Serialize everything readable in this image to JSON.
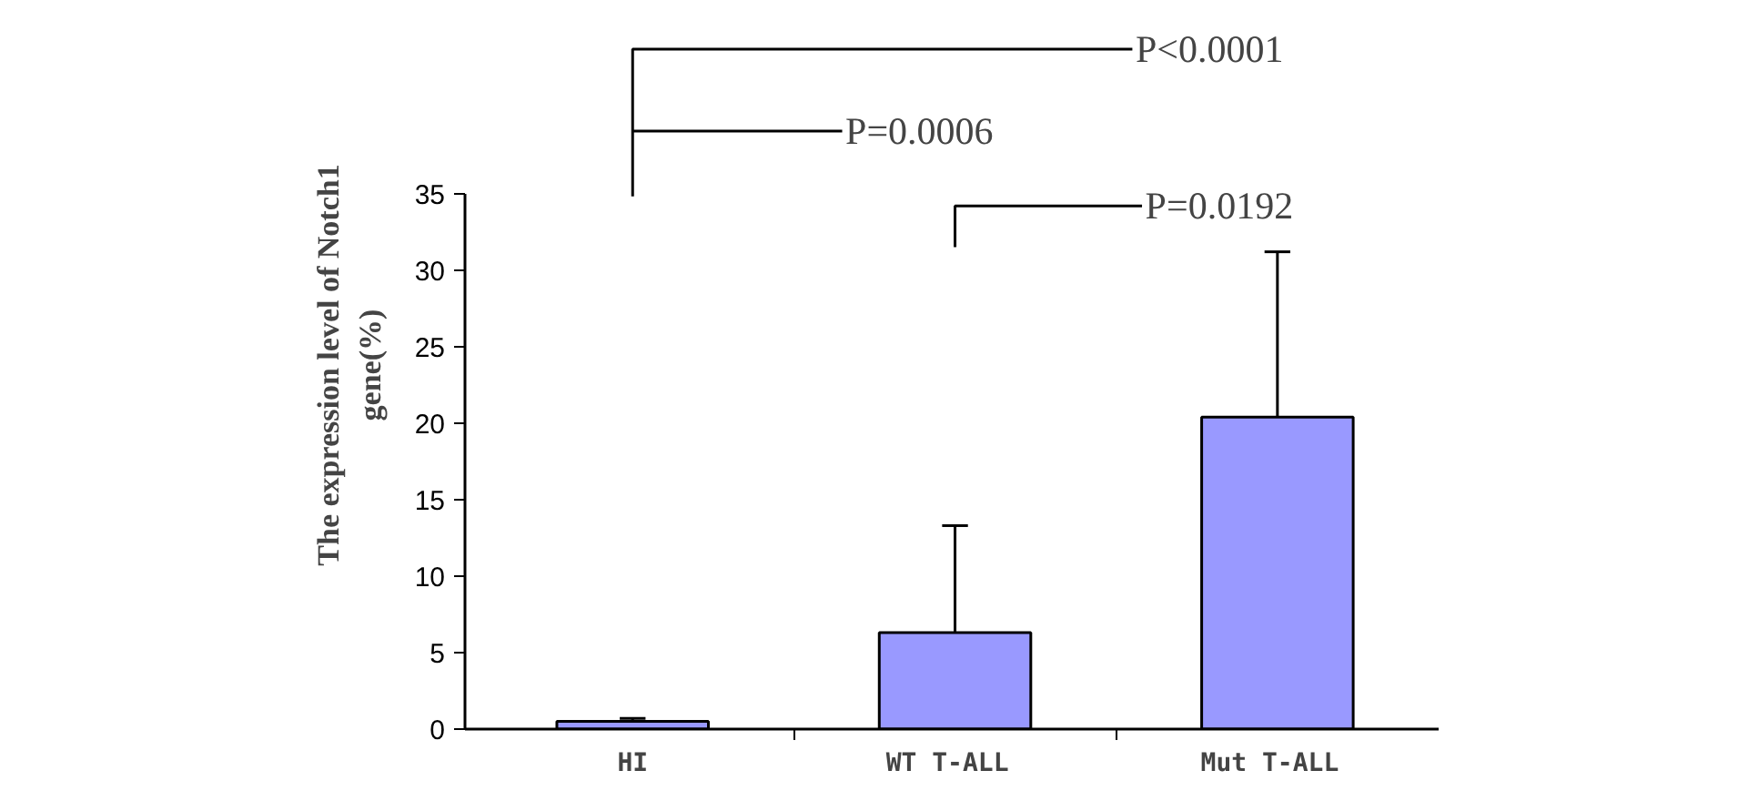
{
  "chart_data": {
    "type": "bar",
    "ylabel": "The expression level of Notch1\ngene(%)",
    "categories": [
      "HI",
      "WT  T-ALL",
      "Mut  T-ALL"
    ],
    "values": [
      0.5,
      6.3,
      20.4
    ],
    "color": "#9999ff",
    "errors": [
      [
        0.5,
        0.7
      ],
      [
        6.3,
        13.3
      ],
      [
        20.4,
        31.2
      ]
    ],
    "ylim": [
      0,
      35
    ],
    "yticks": [
      0,
      5,
      10,
      15,
      20,
      25,
      30,
      35
    ],
    "grid": false,
    "annotations": [
      "P<0.0001",
      "P=0.0006",
      "P=0.0192"
    ]
  }
}
